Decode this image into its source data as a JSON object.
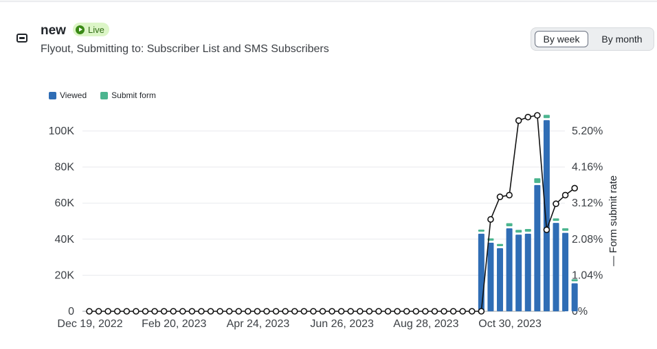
{
  "header": {
    "title": "new",
    "status": "Live",
    "subtitle": "Flyout, Submitting to: Subscriber List and SMS Subscribers"
  },
  "toggle": {
    "week_label": "By week",
    "month_label": "By month",
    "selected": "By week"
  },
  "colors": {
    "viewed": "#2f6db5",
    "submit": "#4cb58f",
    "line": "#111111",
    "live_bg": "#dcf5c7"
  },
  "icons": {
    "header": "form-icon",
    "status": "play-icon"
  },
  "chart_data": {
    "type": "bar",
    "legend_position": "top-left",
    "series": [
      {
        "name": "Viewed",
        "type": "bar",
        "axis": "left"
      },
      {
        "name": "Submit form",
        "type": "bar",
        "axis": "left"
      },
      {
        "name": "Form submit rate",
        "type": "line",
        "axis": "right"
      }
    ],
    "y_left": {
      "ticks": [
        "0",
        "20K",
        "40K",
        "60K",
        "80K",
        "100K"
      ],
      "ylim": [
        0,
        100000
      ]
    },
    "y_right": {
      "label": "Form submit rate",
      "ticks": [
        "0%",
        "1.04%",
        "2.08%",
        "3.12%",
        "4.16%",
        "5.20%"
      ],
      "ylim": [
        0,
        5.2
      ]
    },
    "x_tick_labels": [
      "Dec 19, 2022",
      "Feb 20, 2023",
      "Apr 24, 2023",
      "Jun 26, 2023",
      "Aug 28, 2023",
      "Oct 30, 2023"
    ],
    "x_tick_index": [
      0,
      9,
      18,
      27,
      36,
      45
    ],
    "weeks": 53,
    "viewed": [
      0,
      0,
      0,
      0,
      0,
      0,
      0,
      0,
      0,
      0,
      0,
      0,
      0,
      0,
      0,
      0,
      0,
      0,
      0,
      0,
      0,
      0,
      0,
      0,
      0,
      0,
      0,
      0,
      0,
      0,
      0,
      0,
      0,
      0,
      0,
      0,
      0,
      0,
      0,
      0,
      0,
      0,
      43000,
      38000,
      35000,
      46000,
      42500,
      43000,
      70000,
      106000,
      49000,
      43500,
      15500
    ],
    "submit": [
      0,
      0,
      0,
      0,
      0,
      0,
      0,
      0,
      0,
      0,
      0,
      0,
      0,
      0,
      0,
      0,
      0,
      0,
      0,
      0,
      0,
      0,
      0,
      0,
      0,
      0,
      0,
      0,
      0,
      0,
      0,
      0,
      0,
      0,
      0,
      0,
      0,
      0,
      0,
      0,
      0,
      0,
      900,
      1300,
      1200,
      1700,
      1500,
      1500,
      2600,
      1800,
      1400,
      1400,
      1000
    ],
    "rate": [
      0,
      0,
      0,
      0,
      0,
      0,
      0,
      0,
      0,
      0,
      0,
      0,
      0,
      0,
      0,
      0,
      0,
      0,
      0,
      0,
      0,
      0,
      0,
      0,
      0,
      0,
      0,
      0,
      0,
      0,
      0,
      0,
      0,
      0,
      0,
      0,
      0,
      0,
      0,
      0,
      0,
      0,
      0,
      2.65,
      3.3,
      3.35,
      5.5,
      5.6,
      5.65,
      2.35,
      3.1,
      3.35,
      3.55
    ]
  }
}
